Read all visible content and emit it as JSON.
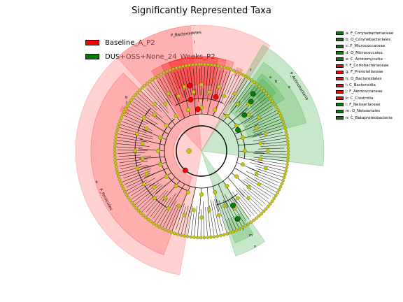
{
  "title": "Significantly Represented Taxa",
  "colors": {
    "baseline": "#ff0000",
    "dus": "#008000",
    "baseline_shade": "#ff6666",
    "dus_shade": "#4caf50",
    "node_default": "#c8c800"
  },
  "legend_main": [
    {
      "label": "Baseline_A_P2",
      "color": "#ff0000"
    },
    {
      "label": "DUS+OSS+None_24_Weeks_P2",
      "color": "#008000"
    }
  ],
  "legend_side": [
    {
      "label": "a: F_Corynebacteriaceae",
      "color": "#008000"
    },
    {
      "label": "b: O_Corynebacteriales",
      "color": "#008000"
    },
    {
      "label": "c: F_Micrococcaceae",
      "color": "#008000"
    },
    {
      "label": "d: O_Micrococcales",
      "color": "#008000"
    },
    {
      "label": "e: C_Actinomycetia",
      "color": "#008000"
    },
    {
      "label": "f: F_Coriobacteriaceae",
      "color": "#ff0000"
    },
    {
      "label": "g: F_Prevotellaceae",
      "color": "#ff0000"
    },
    {
      "label": "h: O_Bacteroidales",
      "color": "#ff0000"
    },
    {
      "label": "i: C_Bacteroidia",
      "color": "#ff0000"
    },
    {
      "label": "j: F_Aerococcaceae",
      "color": "#ff0000"
    },
    {
      "label": "k: C_Clostridia",
      "color": "#ff0000"
    },
    {
      "label": "l: F_Neisseriaceae",
      "color": "#008000"
    },
    {
      "label": "m: O_Neisseriales",
      "color": "#008000"
    },
    {
      "label": "n: C_Betaproteobacteria",
      "color": "#008000"
    }
  ],
  "clade_labels": {
    "bacteroidetes": "P_Bacteroidetes",
    "actinobacteria": "P_Actinobacteria",
    "firmicutes": "P_Firmicutes",
    "a": "a",
    "b": "b",
    "e": "e",
    "f": "f",
    "g": "g",
    "i": "i",
    "j": "j",
    "k": "k",
    "l": "l",
    "m": "m",
    "n": "n"
  }
}
